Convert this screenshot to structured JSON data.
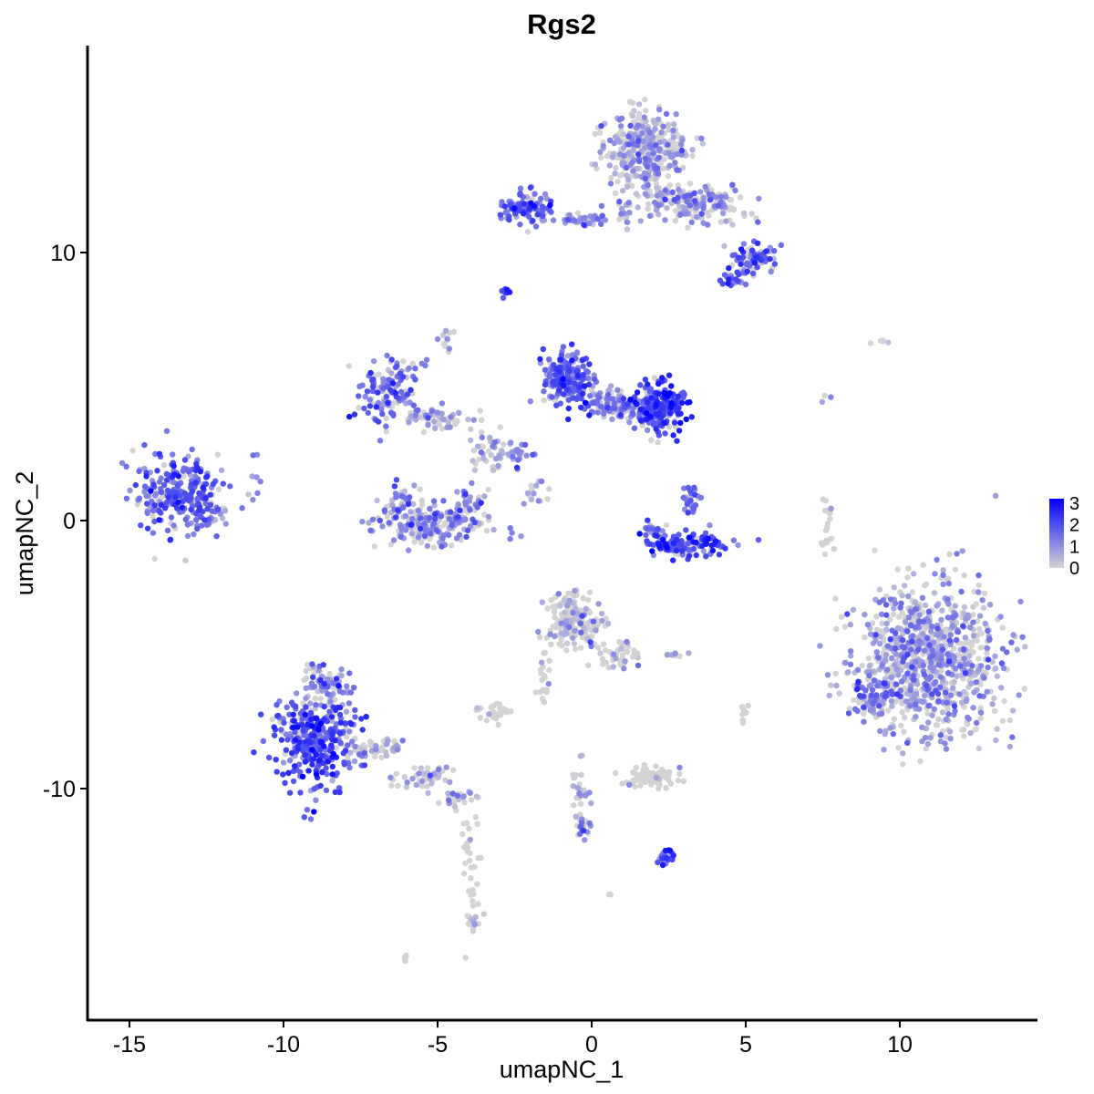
{
  "chart_data": {
    "type": "scatter",
    "title": "Rgs2",
    "xlabel": "umapNC_1",
    "ylabel": "umapNC_2",
    "xlim": [
      -16.5,
      14.5
    ],
    "ylim": [
      -18.5,
      17.8
    ],
    "x_ticks": [
      -15,
      -10,
      -5,
      0,
      5,
      10
    ],
    "y_ticks": [
      -10,
      0,
      10
    ],
    "color_scale": {
      "low": "#d3d3d3",
      "high": "#0000ff",
      "min": 0,
      "max": 3.2,
      "legend_ticks": [
        0,
        1,
        2,
        3
      ],
      "legend_placement": "right"
    },
    "grid": false,
    "clusters": [
      {
        "cx": -13.5,
        "cy": 1.0,
        "rx": 1.2,
        "ry": 1.3,
        "n": 260,
        "expr": 1.6
      },
      {
        "cx": -12.4,
        "cy": 0.3,
        "rx": 0.5,
        "ry": 0.5,
        "n": 25,
        "expr": 1.3
      },
      {
        "cx": -9.0,
        "cy": -8.3,
        "rx": 1.3,
        "ry": 1.6,
        "n": 320,
        "expr": 1.9
      },
      {
        "cx": -8.6,
        "cy": -6.2,
        "rx": 0.8,
        "ry": 0.9,
        "n": 80,
        "expr": 1.0
      },
      {
        "cx": -7.0,
        "cy": -8.5,
        "rx": 1.0,
        "ry": 0.4,
        "n": 60,
        "expr": 0.3
      },
      {
        "cx": -5.4,
        "cy": -9.6,
        "rx": 0.8,
        "ry": 0.4,
        "n": 50,
        "expr": 0.3
      },
      {
        "cx": -4.3,
        "cy": -10.3,
        "rx": 0.5,
        "ry": 0.3,
        "n": 25,
        "expr": 0.5
      },
      {
        "cx": -3.9,
        "cy": -13.0,
        "rx": 0.3,
        "ry": 2.0,
        "n": 35,
        "expr": 0.05
      },
      {
        "cx": -3.8,
        "cy": -15.0,
        "rx": 0.3,
        "ry": 0.4,
        "n": 15,
        "expr": 0.3
      },
      {
        "cx": -6.0,
        "cy": -16.3,
        "rx": 0.15,
        "ry": 0.15,
        "n": 5,
        "expr": 0.0
      },
      {
        "cx": -6.6,
        "cy": 4.8,
        "rx": 0.9,
        "ry": 1.1,
        "n": 130,
        "expr": 1.3
      },
      {
        "cx": -5.0,
        "cy": 3.8,
        "rx": 1.0,
        "ry": 0.4,
        "n": 60,
        "expr": 0.6
      },
      {
        "cx": -4.7,
        "cy": 6.8,
        "rx": 0.25,
        "ry": 0.5,
        "n": 12,
        "expr": 0.4
      },
      {
        "cx": -3.4,
        "cy": 2.7,
        "rx": 0.6,
        "ry": 0.8,
        "n": 40,
        "expr": 0.4
      },
      {
        "cx": -2.4,
        "cy": 2.4,
        "rx": 0.4,
        "ry": 0.5,
        "n": 25,
        "expr": 1.1
      },
      {
        "cx": -1.8,
        "cy": 1.0,
        "rx": 0.5,
        "ry": 0.6,
        "n": 15,
        "expr": 0.5
      },
      {
        "cx": -5.2,
        "cy": -0.2,
        "rx": 1.6,
        "ry": 0.7,
        "n": 200,
        "expr": 1.0
      },
      {
        "cx": -6.1,
        "cy": 0.7,
        "rx": 0.5,
        "ry": 0.6,
        "n": 40,
        "expr": 1.1
      },
      {
        "cx": -4.0,
        "cy": 0.7,
        "rx": 0.5,
        "ry": 0.6,
        "n": 40,
        "expr": 1.1
      },
      {
        "cx": -0.8,
        "cy": 5.3,
        "rx": 0.7,
        "ry": 0.9,
        "n": 220,
        "expr": 1.7
      },
      {
        "cx": 0.8,
        "cy": 4.3,
        "rx": 0.9,
        "ry": 0.5,
        "n": 120,
        "expr": 1.2
      },
      {
        "cx": 2.2,
        "cy": 4.2,
        "rx": 0.7,
        "ry": 0.8,
        "n": 200,
        "expr": 2.0
      },
      {
        "cx": 1.8,
        "cy": 13.8,
        "rx": 1.2,
        "ry": 1.4,
        "n": 350,
        "expr": 0.6
      },
      {
        "cx": 3.3,
        "cy": 11.8,
        "rx": 1.6,
        "ry": 0.6,
        "n": 170,
        "expr": 0.8
      },
      {
        "cx": 5.3,
        "cy": 9.8,
        "rx": 0.7,
        "ry": 0.5,
        "n": 70,
        "expr": 1.6
      },
      {
        "cx": 4.6,
        "cy": 9.0,
        "rx": 0.4,
        "ry": 0.3,
        "n": 25,
        "expr": 1.5
      },
      {
        "cx": -2.1,
        "cy": 11.7,
        "rx": 0.8,
        "ry": 0.5,
        "n": 110,
        "expr": 1.6
      },
      {
        "cx": -0.2,
        "cy": 11.2,
        "rx": 0.9,
        "ry": 0.2,
        "n": 40,
        "expr": 1.1
      },
      {
        "cx": 1.1,
        "cy": 11.4,
        "rx": 0.3,
        "ry": 0.6,
        "n": 20,
        "expr": 0.5
      },
      {
        "cx": -2.8,
        "cy": 8.5,
        "rx": 0.15,
        "ry": 0.15,
        "n": 12,
        "expr": 1.8
      },
      {
        "cx": 3.1,
        "cy": -0.9,
        "rx": 1.1,
        "ry": 0.4,
        "n": 130,
        "expr": 1.8
      },
      {
        "cx": 3.2,
        "cy": 0.8,
        "rx": 0.3,
        "ry": 0.5,
        "n": 30,
        "expr": 1.4
      },
      {
        "cx": 2.0,
        "cy": -0.4,
        "rx": 0.4,
        "ry": 0.3,
        "n": 25,
        "expr": 1.4
      },
      {
        "cx": -0.6,
        "cy": -3.7,
        "rx": 0.8,
        "ry": 1.0,
        "n": 170,
        "expr": 0.2
      },
      {
        "cx": 1.0,
        "cy": -4.9,
        "rx": 0.6,
        "ry": 0.5,
        "n": 40,
        "expr": 0.15
      },
      {
        "cx": -1.5,
        "cy": -6.0,
        "rx": 0.3,
        "ry": 0.8,
        "n": 20,
        "expr": 0.05
      },
      {
        "cx": -3.2,
        "cy": -7.1,
        "rx": 0.5,
        "ry": 0.3,
        "n": 30,
        "expr": 0.05
      },
      {
        "cx": -0.4,
        "cy": -10.3,
        "rx": 0.25,
        "ry": 1.2,
        "n": 30,
        "expr": 0.4
      },
      {
        "cx": -0.2,
        "cy": -11.5,
        "rx": 0.2,
        "ry": 0.4,
        "n": 15,
        "expr": 1.2
      },
      {
        "cx": 2.0,
        "cy": -9.6,
        "rx": 0.8,
        "ry": 0.35,
        "n": 80,
        "expr": 0.05
      },
      {
        "cx": 2.4,
        "cy": -12.6,
        "rx": 0.2,
        "ry": 0.3,
        "n": 25,
        "expr": 2.1
      },
      {
        "cx": 2.8,
        "cy": -5.0,
        "rx": 0.4,
        "ry": 0.1,
        "n": 8,
        "expr": 0.1
      },
      {
        "cx": 5.0,
        "cy": -7.2,
        "rx": 0.15,
        "ry": 0.4,
        "n": 8,
        "expr": 0.05
      },
      {
        "cx": 7.6,
        "cy": -0.2,
        "rx": 0.15,
        "ry": 0.9,
        "n": 20,
        "expr": 0.05
      },
      {
        "cx": 10.9,
        "cy": -5.2,
        "rx": 2.1,
        "ry": 2.6,
        "n": 900,
        "expr": 0.7
      },
      {
        "cx": 9.2,
        "cy": -6.6,
        "rx": 0.8,
        "ry": 0.7,
        "n": 80,
        "expr": 1.3
      },
      {
        "cx": 9.4,
        "cy": 6.7,
        "rx": 0.3,
        "ry": 0.15,
        "n": 5,
        "expr": 0.3
      },
      {
        "cx": 7.7,
        "cy": 4.7,
        "rx": 0.2,
        "ry": 0.3,
        "n": 3,
        "expr": 0.1
      },
      {
        "cx": -11.2,
        "cy": 1.3,
        "rx": 0.4,
        "ry": 0.8,
        "n": 8,
        "expr": 0.8
      },
      {
        "cx": 0.6,
        "cy": -14.0,
        "rx": 0.1,
        "ry": 0.1,
        "n": 3,
        "expr": 0.0
      }
    ]
  }
}
